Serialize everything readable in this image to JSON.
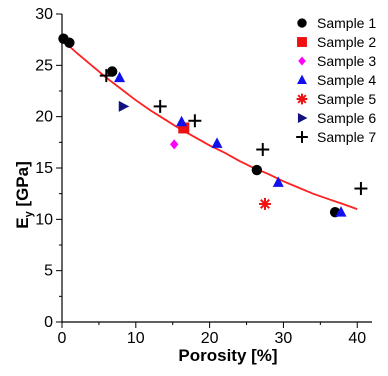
{
  "chart_data": {
    "type": "scatter",
    "xlabel": "Porosity [%]",
    "ylabel_main": "E",
    "ylabel_sub": "y",
    "ylabel_unit": " [GPa]",
    "xlim": [
      0,
      42
    ],
    "ylim": [
      0,
      30
    ],
    "xticks": [
      0,
      10,
      20,
      30,
      40
    ],
    "yticks": [
      0,
      5,
      10,
      15,
      20,
      25,
      30
    ],
    "grid": false,
    "legend_position": "top-right",
    "fit_color": "#ff2020",
    "fit_curve": {
      "x": [
        0,
        2,
        4,
        6,
        8,
        10,
        12,
        14,
        16,
        18,
        20,
        22,
        24,
        26,
        28,
        30,
        32,
        34,
        36,
        38,
        40
      ],
      "y": [
        27.5,
        26.2,
        25.0,
        23.8,
        22.7,
        21.6,
        20.6,
        19.7,
        18.8,
        18.0,
        17.2,
        16.5,
        15.7,
        15.0,
        14.4,
        13.7,
        13.1,
        12.5,
        12.0,
        11.5,
        11.0
      ]
    },
    "series": [
      {
        "name": "Sample 1",
        "marker": "circle",
        "color": "#000000",
        "x": [
          0.2,
          1.0,
          6.8,
          26.4,
          37.0
        ],
        "y": [
          27.6,
          27.2,
          24.4,
          14.8,
          10.7
        ]
      },
      {
        "name": "Sample 2",
        "marker": "square",
        "color": "#ee1111",
        "x": [
          16.5
        ],
        "y": [
          18.9
        ]
      },
      {
        "name": "Sample 3",
        "marker": "diamond",
        "color": "#ff00ff",
        "x": [
          15.2
        ],
        "y": [
          17.3
        ]
      },
      {
        "name": "Sample 4",
        "marker": "triangle-up",
        "color": "#1111ee",
        "x": [
          7.8,
          16.2,
          21.0,
          29.3,
          37.8
        ],
        "y": [
          23.8,
          19.5,
          17.4,
          13.6,
          10.7
        ]
      },
      {
        "name": "Sample 5",
        "marker": "asterisk",
        "color": "#ee1111",
        "x": [
          27.5
        ],
        "y": [
          11.5
        ]
      },
      {
        "name": "Sample 6",
        "marker": "triangle-right",
        "color": "#101080",
        "x": [
          8.3
        ],
        "y": [
          21.0
        ]
      },
      {
        "name": "Sample 7",
        "marker": "plus",
        "color": "#000000",
        "x": [
          6.0,
          13.3,
          18.0,
          27.2,
          40.5
        ],
        "y": [
          24.0,
          21.0,
          19.6,
          16.8,
          13.0
        ]
      }
    ]
  }
}
